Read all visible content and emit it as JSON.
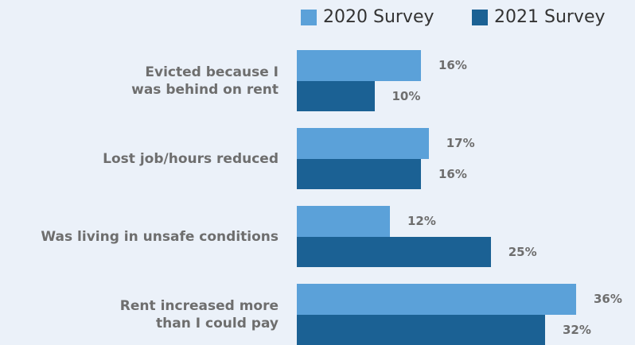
{
  "chart_data": {
    "type": "bar",
    "orientation": "horizontal",
    "categories": [
      "Evicted because I\nwas behind on rent",
      "Lost job/hours reduced",
      "Was living in unsafe conditions",
      "Rent increased more\nthan I could pay"
    ],
    "series": [
      {
        "name": "2020 Survey",
        "color": "#5ba1d9",
        "values": [
          16,
          17,
          12,
          36
        ],
        "value_labels": [
          "16%",
          "17%",
          "12%",
          "36%"
        ]
      },
      {
        "name": "2021 Survey",
        "color": "#1b6194",
        "values": [
          10,
          16,
          25,
          32
        ],
        "value_labels": [
          "10%",
          "16%",
          "25%",
          "32%"
        ]
      }
    ],
    "legend": "top-right"
  }
}
